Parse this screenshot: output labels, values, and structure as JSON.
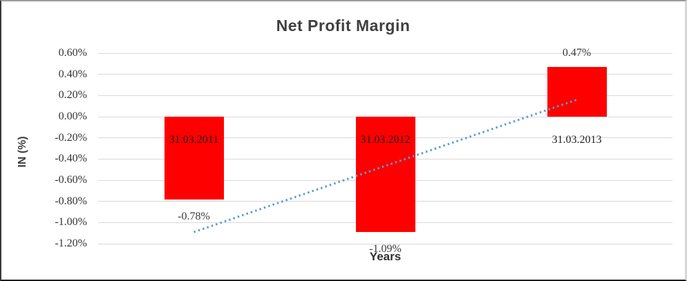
{
  "chart_data": {
    "type": "bar",
    "title": "Net Profit Margin",
    "xlabel": "Years",
    "ylabel": "IN (%)",
    "categories": [
      "31.03.2011",
      "31.03.2012",
      "31.03.2013"
    ],
    "values": [
      -0.78,
      -1.09,
      0.47
    ],
    "data_labels": [
      "-0.78%",
      "-1.09%",
      "0.47%"
    ],
    "ylim": [
      -1.2,
      0.6
    ],
    "yticks": {
      "values": [
        0.6,
        0.4,
        0.2,
        0.0,
        -0.2,
        -0.4,
        -0.6,
        -0.8,
        -1.0,
        -1.2
      ],
      "labels": [
        "0.60%",
        "0.40%",
        "0.20%",
        "0.00%",
        "-0.20%",
        "-0.40%",
        "-0.60%",
        "-0.80%",
        "-1.00%",
        "-1.20%"
      ]
    },
    "grid": true,
    "legend": false,
    "trendline": {
      "type": "linear",
      "style": "dotted",
      "start_value": -1.09,
      "end_value": 0.16,
      "color": "#5B9BD5"
    },
    "colors": {
      "bar": "#FF0000",
      "gridline": "#D9D9D9",
      "title_text": "#3F3F3F",
      "label_text": "#333333"
    }
  }
}
